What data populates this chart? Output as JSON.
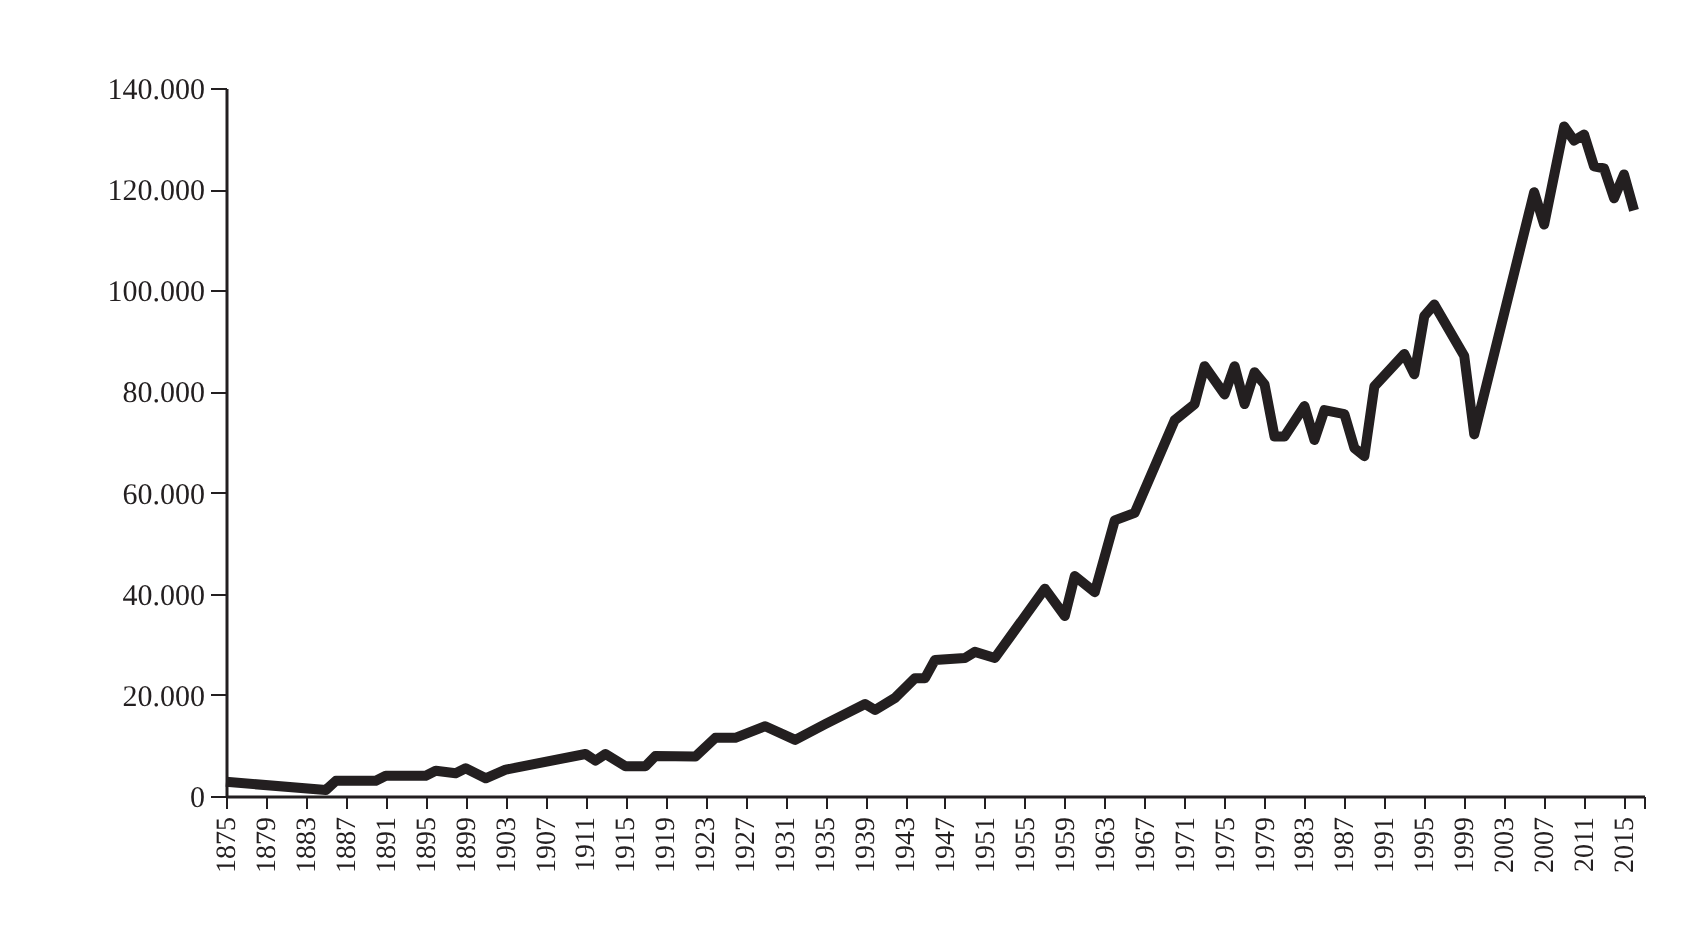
{
  "chart_data": {
    "type": "line",
    "x": [
      1875,
      1885,
      1886,
      1890,
      1891,
      1895,
      1896,
      1898,
      1899,
      1901,
      1903,
      1911,
      1912,
      1913,
      1915,
      1917,
      1918,
      1922,
      1924,
      1926,
      1929,
      1932,
      1935,
      1939,
      1940,
      1942,
      1944,
      1945,
      1946,
      1949,
      1950,
      1952,
      1957,
      1959,
      1960,
      1962,
      1964,
      1966,
      1970,
      1972,
      1973,
      1975,
      1976,
      1977,
      1978,
      1979,
      1980,
      1981,
      1983,
      1984,
      1985,
      1987,
      1988,
      1989,
      1990,
      1993,
      1994,
      1995,
      1996,
      1999,
      2000,
      2006,
      2007,
      2009,
      2010,
      2011,
      2012,
      2013,
      2014,
      2015,
      2016
    ],
    "series": [
      {
        "color": "#231f20",
        "values": [
          2800,
          1200,
          3000,
          3000,
          4000,
          4000,
          5000,
          4500,
          5500,
          3500,
          5200,
          8300,
          7000,
          8300,
          5900,
          5900,
          7900,
          7800,
          11500,
          11500,
          13800,
          11100,
          14200,
          18200,
          17000,
          19400,
          23300,
          23300,
          26900,
          27300,
          28500,
          27300,
          41000,
          35600,
          43500,
          40300,
          54500,
          56000,
          74300,
          77500,
          85000,
          79400,
          85000,
          77500,
          83800,
          81400,
          71100,
          71100,
          77100,
          70400,
          76300,
          75500,
          68800,
          67200,
          81000,
          87400,
          83400,
          94900,
          97200,
          87000,
          71500,
          119400,
          113000,
          132400,
          129600,
          130800,
          124500,
          124100,
          118200,
          122900,
          115800
        ]
      }
    ],
    "xlim": [
      1875,
      2017
    ],
    "xticks": [
      1875,
      1879,
      1883,
      1887,
      1891,
      1895,
      1899,
      1903,
      1907,
      1911,
      1915,
      1919,
      1923,
      1927,
      1931,
      1935,
      1939,
      1943,
      1947,
      1951,
      1955,
      1959,
      1963,
      1967,
      1971,
      1975,
      1979,
      1983,
      1987,
      1991,
      1995,
      1999,
      2003,
      2007,
      2011,
      2015,
      {
        "value": 2017,
        "label": null
      }
    ],
    "ylim": [
      0,
      140000
    ],
    "yticks": [
      0,
      {
        "value": 20000,
        "label": "20.000"
      },
      {
        "value": 40000,
        "label": "40.000"
      },
      {
        "value": 60000,
        "label": "60.000"
      },
      {
        "value": 80000,
        "label": "80.000"
      },
      {
        "value": 100000,
        "label": "100.000"
      },
      {
        "value": 120000,
        "label": "120.000"
      },
      {
        "value": 140000,
        "label": "140.000"
      }
    ],
    "grid": false,
    "marker": "none",
    "line_style": "solid"
  }
}
